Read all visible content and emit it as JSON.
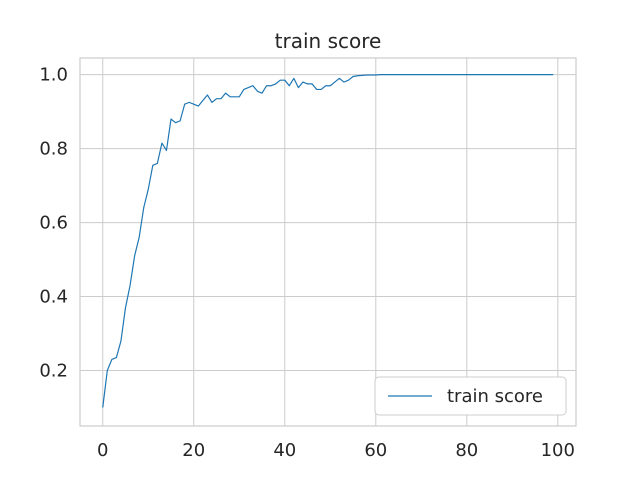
{
  "chart_data": {
    "type": "line",
    "title": "train score",
    "xlabel": "",
    "ylabel": "",
    "xlim": [
      -5,
      104
    ],
    "ylim": [
      0.05,
      1.045
    ],
    "xticks": [
      0,
      20,
      40,
      60,
      80,
      100
    ],
    "yticks": [
      0.2,
      0.4,
      0.6,
      0.8,
      1.0
    ],
    "xtick_labels": [
      "0",
      "20",
      "40",
      "60",
      "80",
      "100"
    ],
    "ytick_labels": [
      "0.2",
      "0.4",
      "0.6",
      "0.8",
      "1.0"
    ],
    "grid": true,
    "legend_position": "bottom-right",
    "series": [
      {
        "name": "train score",
        "color": "#1f77b4",
        "x": [
          0,
          1,
          2,
          3,
          4,
          5,
          6,
          7,
          8,
          9,
          10,
          11,
          12,
          13,
          14,
          15,
          16,
          17,
          18,
          19,
          20,
          21,
          22,
          23,
          24,
          25,
          26,
          27,
          28,
          29,
          30,
          31,
          32,
          33,
          34,
          35,
          36,
          37,
          38,
          39,
          40,
          41,
          42,
          43,
          44,
          45,
          46,
          47,
          48,
          49,
          50,
          51,
          52,
          53,
          54,
          55,
          56,
          57,
          58,
          59,
          60,
          61,
          62,
          63,
          64,
          65,
          66,
          67,
          68,
          69,
          70,
          71,
          72,
          73,
          74,
          75,
          76,
          77,
          78,
          79,
          80,
          81,
          82,
          83,
          84,
          85,
          86,
          87,
          88,
          89,
          90,
          91,
          92,
          93,
          94,
          95,
          96,
          97,
          98,
          99
        ],
        "values": [
          0.1,
          0.2,
          0.23,
          0.235,
          0.28,
          0.37,
          0.43,
          0.51,
          0.56,
          0.64,
          0.69,
          0.755,
          0.76,
          0.815,
          0.795,
          0.88,
          0.87,
          0.875,
          0.92,
          0.925,
          0.92,
          0.915,
          0.93,
          0.945,
          0.925,
          0.935,
          0.935,
          0.95,
          0.94,
          0.94,
          0.94,
          0.96,
          0.965,
          0.97,
          0.955,
          0.95,
          0.97,
          0.97,
          0.975,
          0.985,
          0.985,
          0.97,
          0.99,
          0.965,
          0.98,
          0.975,
          0.975,
          0.96,
          0.96,
          0.97,
          0.97,
          0.98,
          0.99,
          0.98,
          0.985,
          0.995,
          0.997,
          0.998,
          0.999,
          0.999,
          0.999,
          1.0,
          1.0,
          1.0,
          1.0,
          1.0,
          1.0,
          1.0,
          1.0,
          1.0,
          1.0,
          1.0,
          1.0,
          1.0,
          1.0,
          1.0,
          1.0,
          1.0,
          1.0,
          1.0,
          1.0,
          1.0,
          1.0,
          1.0,
          1.0,
          1.0,
          1.0,
          1.0,
          1.0,
          1.0,
          1.0,
          1.0,
          1.0,
          1.0,
          1.0,
          1.0,
          1.0,
          1.0,
          1.0,
          1.0
        ]
      }
    ]
  }
}
